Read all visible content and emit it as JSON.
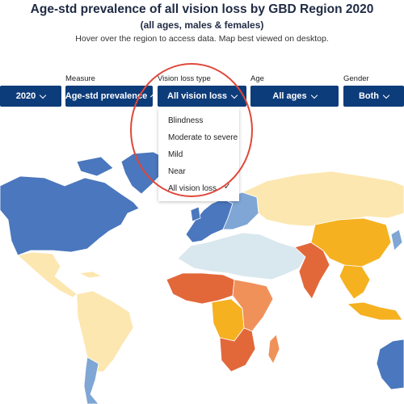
{
  "header": {
    "title": "Age-std prevalence of all vision loss by GBD Region 2020",
    "subtitle": "(all ages, males & females)",
    "hint": "Hover over the region to access data. Map best viewed on desktop."
  },
  "filters": {
    "year": {
      "label": "",
      "value": "2020"
    },
    "measure": {
      "label": "Measure",
      "value": "Age-std prevalence"
    },
    "vision_loss_type": {
      "label": "Vision loss type",
      "value": "All vision loss"
    },
    "age": {
      "label": "Age",
      "value": "All ages"
    },
    "gender": {
      "label": "Gender",
      "value": "Both"
    }
  },
  "dropdown": {
    "items": [
      "Blindness",
      "Moderate to severe",
      "Mild",
      "Near",
      "All vision loss"
    ],
    "check_mark": "✓"
  },
  "colors": {
    "button_bg": "#0d3c7a",
    "annotation_circle": "#e0473a",
    "region_blue": "#4a77bd",
    "region_light_blue": "#7fa6d4",
    "region_pale_blue": "#d9e8ee",
    "region_light_yellow": "#fde7b0",
    "region_yellow": "#f5b120",
    "region_orange": "#f0915a",
    "region_red_orange": "#e2683a"
  }
}
